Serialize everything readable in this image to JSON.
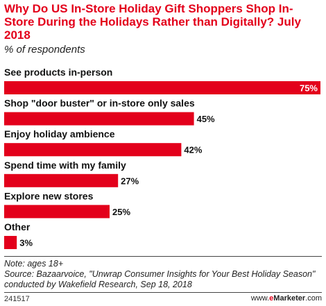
{
  "header": {
    "title": "Why Do US In-Store Holiday Gift Shoppers Shop In-Store During the Holidays Rather than Digitally? July 2018",
    "subtitle": "% of respondents"
  },
  "chart_data": {
    "type": "bar",
    "orientation": "horizontal",
    "categories": [
      "See products in-person",
      "Shop \"door buster\" or in-store only sales",
      "Enjoy holiday ambience",
      "Spend time with my family",
      "Explore new stores",
      "Other"
    ],
    "values": [
      75,
      45,
      42,
      27,
      25,
      3
    ],
    "value_labels": [
      "75%",
      "45%",
      "42%",
      "27%",
      "25%",
      "3%"
    ],
    "xlim": [
      0,
      75
    ],
    "bar_color": "#e3001b",
    "grid": false,
    "legend": "none"
  },
  "footer": {
    "note": "Note: ages 18+",
    "source": "Source: Bazaarvoice, \"Unwrap Consumer Insights for Your Best Holiday Season\" conducted by Wakefield Research, Sep 18, 2018",
    "chart_id": "241517",
    "brand_prefix": "www.",
    "brand_e": "e",
    "brand_name": "Marketer",
    "brand_suffix": ".com"
  }
}
